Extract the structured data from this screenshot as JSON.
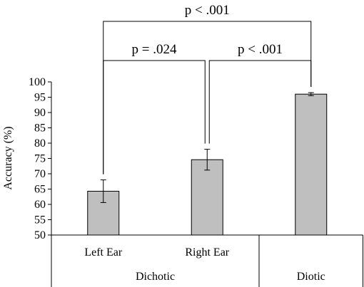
{
  "chart_data": {
    "type": "bar",
    "ylabel": "Accuracy (%)",
    "ylim": [
      50,
      100
    ],
    "yticks": [
      50,
      55,
      60,
      65,
      70,
      75,
      80,
      85,
      90,
      95,
      100
    ],
    "categories": [
      "Left Ear",
      "Right Ear",
      "Diotic"
    ],
    "values": [
      64.3,
      74.6,
      96.0
    ],
    "error": [
      3.7,
      3.4,
      0.5
    ],
    "groups": [
      {
        "label": "Dichotic",
        "categories": [
          "Left Ear",
          "Right Ear"
        ]
      },
      {
        "label": "Diotic",
        "categories": [
          "Diotic"
        ]
      }
    ],
    "show_category_labels": [
      true,
      true,
      false
    ],
    "comparisons": [
      {
        "from": 0,
        "to": 1,
        "label": "p = .024"
      },
      {
        "from": 1,
        "to": 2,
        "label": "p < .001"
      },
      {
        "from": 0,
        "to": 2,
        "label": "p < .001"
      }
    ],
    "grid": false,
    "bar_color": "#bfbfbf"
  }
}
